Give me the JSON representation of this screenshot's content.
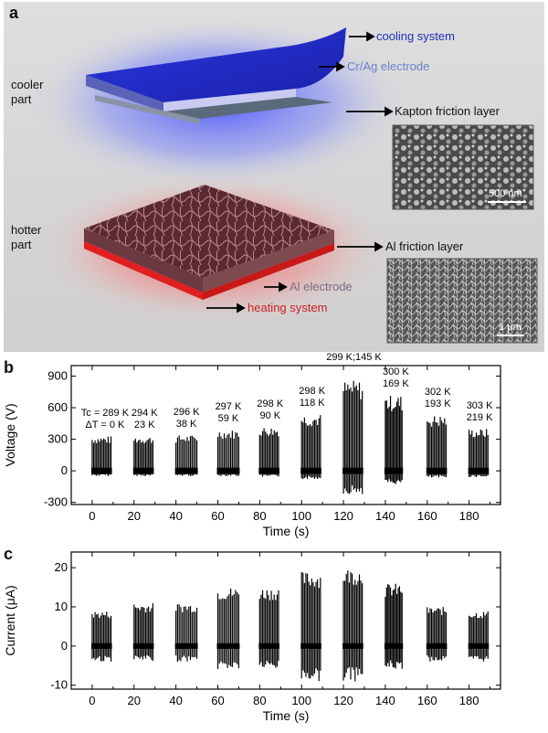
{
  "panel_a": {
    "letter": "a",
    "cooler_label": "cooler\npart",
    "hotter_label": "hotter\npart",
    "callouts": {
      "cooling_system": "cooling system",
      "cr_ag_electrode": "Cr/Ag electrode",
      "kapton_friction_layer": "Kapton friction layer",
      "al_friction_layer": "Al friction layer",
      "al_electrode": "Al electrode",
      "heating_system": "heating system"
    },
    "scalebar_top": "500 nm",
    "scalebar_bottom": "1 μm",
    "colors": {
      "cooling_text": "#1e2fb8",
      "cr_ag_text": "#6a82c9",
      "al_electrode_text": "#7d6a85",
      "heating_text": "#cc1e1e",
      "blue_plate": "#2230d0",
      "red_plate": "#e02020"
    }
  },
  "chart_data": [
    {
      "panel": "b",
      "type": "bar",
      "ylabel": "Voltage (V)",
      "xlabel": "Time (s)",
      "xlim": [
        -10,
        195
      ],
      "ylim": [
        -320,
        1000
      ],
      "xticks": [
        0,
        20,
        40,
        60,
        80,
        100,
        120,
        140,
        160,
        180
      ],
      "yticks": [
        -300,
        0,
        300,
        600,
        900
      ],
      "groups": [
        {
          "x_start": 0,
          "x_end": 9,
          "max": 330,
          "min": -50
        },
        {
          "x_start": 20,
          "x_end": 29,
          "max": 330,
          "min": -50
        },
        {
          "x_start": 40,
          "x_end": 50,
          "max": 340,
          "min": -50
        },
        {
          "x_start": 60,
          "x_end": 70,
          "max": 390,
          "min": -50
        },
        {
          "x_start": 80,
          "x_end": 89,
          "max": 420,
          "min": -60
        },
        {
          "x_start": 100,
          "x_end": 109,
          "max": 540,
          "min": -80
        },
        {
          "x_start": 120,
          "x_end": 129,
          "max": 860,
          "min": -220
        },
        {
          "x_start": 140,
          "x_end": 148,
          "max": 720,
          "min": -130
        },
        {
          "x_start": 160,
          "x_end": 169,
          "max": 530,
          "min": -70
        },
        {
          "x_start": 180,
          "x_end": 189,
          "max": 400,
          "min": -60
        }
      ],
      "annotations": [
        {
          "x": 0,
          "tc": "Tc = 289 K",
          "dt": "ΔT = 0 K"
        },
        {
          "x": 25,
          "tc": "294 K",
          "dt": "23 K"
        },
        {
          "x": 45,
          "tc": "296 K",
          "dt": "38 K"
        },
        {
          "x": 65,
          "tc": "297 K",
          "dt": "59 K"
        },
        {
          "x": 85,
          "tc": "298 K",
          "dt": "90 K"
        },
        {
          "x": 105,
          "tc": "298 K",
          "dt": "118 K"
        },
        {
          "x": 125,
          "tc": "299 K;145 K",
          "dt": ""
        },
        {
          "x": 145,
          "tc": "300 K",
          "dt": "169 K"
        },
        {
          "x": 165,
          "tc": "302 K",
          "dt": "193 K"
        },
        {
          "x": 185,
          "tc": "303 K",
          "dt": "219 K"
        }
      ]
    },
    {
      "panel": "c",
      "type": "bar",
      "ylabel": "Current (μA)",
      "xlabel": "Time (s)",
      "xlim": [
        -10,
        195
      ],
      "ylim": [
        -11,
        24
      ],
      "xticks": [
        0,
        20,
        40,
        60,
        80,
        100,
        120,
        140,
        160,
        180
      ],
      "yticks": [
        -10,
        0,
        10,
        20
      ],
      "groups": [
        {
          "x_start": 0,
          "x_end": 9,
          "max": 9,
          "min": -4
        },
        {
          "x_start": 20,
          "x_end": 29,
          "max": 11,
          "min": -4
        },
        {
          "x_start": 40,
          "x_end": 50,
          "max": 11,
          "min": -4
        },
        {
          "x_start": 60,
          "x_end": 70,
          "max": 15,
          "min": -6
        },
        {
          "x_start": 80,
          "x_end": 89,
          "max": 15,
          "min": -6
        },
        {
          "x_start": 100,
          "x_end": 109,
          "max": 19,
          "min": -9
        },
        {
          "x_start": 120,
          "x_end": 129,
          "max": 20,
          "min": -9
        },
        {
          "x_start": 140,
          "x_end": 148,
          "max": 16,
          "min": -6
        },
        {
          "x_start": 160,
          "x_end": 169,
          "max": 10,
          "min": -4
        },
        {
          "x_start": 180,
          "x_end": 189,
          "max": 9,
          "min": -4
        }
      ]
    }
  ]
}
